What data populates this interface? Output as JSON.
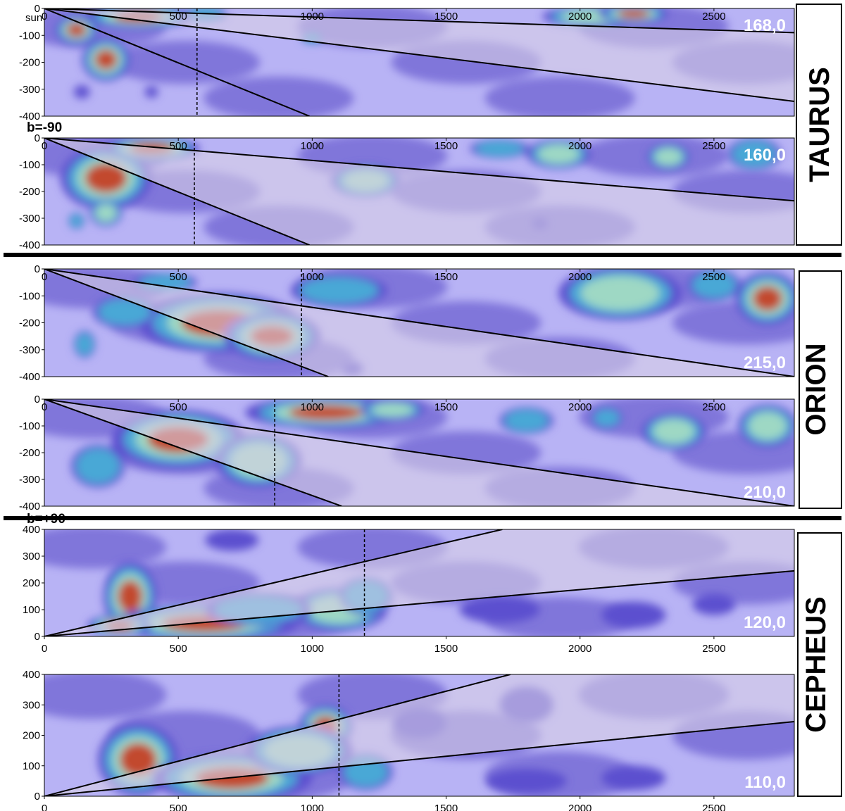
{
  "chart_data": {
    "type": "heatmap",
    "description_of_axes": "",
    "panels": [
      {
        "region": "TAURUS",
        "lb": "168,0",
        "xlim": [
          0,
          2800
        ],
        "ylim": [
          -400,
          0
        ],
        "ticks_x": [
          "0",
          "500",
          "1000",
          "1500",
          "2000",
          "2500"
        ],
        "ticks_y": [
          "0",
          "-100",
          "-200",
          "-300",
          "-400"
        ],
        "annotation": "sun",
        "cone_lines": [
          [
            [
              0,
              0
            ],
            [
              2800,
              -90
            ]
          ],
          [
            [
              0,
              0
            ],
            [
              2800,
              -345
            ]
          ],
          [
            [
              0,
              0
            ],
            [
              990,
              -400
            ]
          ]
        ],
        "dotted_x": 570,
        "blobs": [
          {
            "x": 120,
            "y": -80,
            "rx": 80,
            "ry": 55,
            "level": 5
          },
          {
            "x": 230,
            "y": -190,
            "rx": 90,
            "ry": 80,
            "level": 5
          },
          {
            "x": 350,
            "y": -30,
            "rx": 200,
            "ry": 45,
            "level": 5
          },
          {
            "x": 600,
            "y": -20,
            "rx": 80,
            "ry": 30,
            "level": 3
          },
          {
            "x": 1000,
            "y": -110,
            "rx": 40,
            "ry": 20,
            "level": 3
          },
          {
            "x": 2050,
            "y": -30,
            "rx": 190,
            "ry": 40,
            "level": 4
          },
          {
            "x": 2200,
            "y": -20,
            "rx": 130,
            "ry": 35,
            "level": 5
          },
          {
            "x": 140,
            "y": -310,
            "rx": 30,
            "ry": 25,
            "level": 2
          },
          {
            "x": 400,
            "y": -310,
            "rx": 25,
            "ry": 22,
            "level": 2
          }
        ]
      },
      {
        "region": "TAURUS",
        "lb": "160,0",
        "xlim": [
          0,
          2800
        ],
        "ylim": [
          -400,
          0
        ],
        "ticks_x": [
          "0",
          "500",
          "1000",
          "1500",
          "2000",
          "2500"
        ],
        "ticks_y": [
          "0",
          "-100",
          "-200",
          "-300",
          "-400"
        ],
        "annotation": "b=-90",
        "cone_lines": [
          [
            [
              0,
              0
            ],
            [
              2800,
              -235
            ]
          ],
          [
            [
              0,
              0
            ],
            [
              990,
              -400
            ]
          ]
        ],
        "dotted_x": 560,
        "blobs": [
          {
            "x": 230,
            "y": -150,
            "rx": 170,
            "ry": 120,
            "level": 5
          },
          {
            "x": 400,
            "y": -40,
            "rx": 180,
            "ry": 45,
            "level": 5
          },
          {
            "x": 230,
            "y": -280,
            "rx": 60,
            "ry": 50,
            "level": 4
          },
          {
            "x": 1200,
            "y": -160,
            "rx": 130,
            "ry": 60,
            "level": 4
          },
          {
            "x": 1700,
            "y": -40,
            "rx": 110,
            "ry": 35,
            "level": 3
          },
          {
            "x": 1920,
            "y": -60,
            "rx": 120,
            "ry": 55,
            "level": 4
          },
          {
            "x": 2330,
            "y": -70,
            "rx": 80,
            "ry": 50,
            "level": 4
          },
          {
            "x": 2650,
            "y": -60,
            "rx": 100,
            "ry": 60,
            "level": 3
          },
          {
            "x": 120,
            "y": -310,
            "rx": 30,
            "ry": 30,
            "level": 3
          },
          {
            "x": 1850,
            "y": -320,
            "rx": 30,
            "ry": 20,
            "level": 2
          }
        ]
      },
      {
        "region": "ORION",
        "lb": "215,0",
        "xlim": [
          0,
          2800
        ],
        "ylim": [
          -400,
          0
        ],
        "ticks_x": [
          "0",
          "500",
          "1000",
          "1500",
          "2000",
          "2500"
        ],
        "ticks_y": [
          "0",
          "-100",
          "-200",
          "-300",
          "-400"
        ],
        "annotation": "",
        "cone_lines": [
          [
            [
              0,
              0
            ],
            [
              2800,
              -400
            ]
          ],
          [
            [
              0,
              0
            ],
            [
              1060,
              -400
            ]
          ]
        ],
        "dotted_x": 960,
        "blobs": [
          {
            "x": 650,
            "y": -200,
            "rx": 300,
            "ry": 110,
            "level": 5
          },
          {
            "x": 850,
            "y": -250,
            "rx": 180,
            "ry": 90,
            "level": 5
          },
          {
            "x": 300,
            "y": -160,
            "rx": 120,
            "ry": 60,
            "level": 3
          },
          {
            "x": 450,
            "y": -50,
            "rx": 120,
            "ry": 35,
            "level": 3
          },
          {
            "x": 1100,
            "y": -80,
            "rx": 180,
            "ry": 60,
            "level": 3
          },
          {
            "x": 2150,
            "y": -90,
            "rx": 230,
            "ry": 100,
            "level": 4
          },
          {
            "x": 2700,
            "y": -110,
            "rx": 120,
            "ry": 100,
            "level": 5
          },
          {
            "x": 2500,
            "y": -60,
            "rx": 100,
            "ry": 60,
            "level": 3
          },
          {
            "x": 150,
            "y": -280,
            "rx": 40,
            "ry": 50,
            "level": 3
          },
          {
            "x": 1150,
            "y": -370,
            "rx": 40,
            "ry": 25,
            "level": 2
          }
        ]
      },
      {
        "region": "ORION",
        "lb": "210,0",
        "xlim": [
          0,
          2800
        ],
        "ylim": [
          -400,
          0
        ],
        "ticks_x": [
          "0",
          "500",
          "1000",
          "1500",
          "2000",
          "2500"
        ],
        "ticks_y": [
          "0",
          "-100",
          "-200",
          "-300",
          "-400"
        ],
        "annotation": "",
        "cone_lines": [
          [
            [
              0,
              0
            ],
            [
              2800,
              -400
            ]
          ],
          [
            [
              0,
              0
            ],
            [
              1110,
              -400
            ]
          ]
        ],
        "dotted_x": 860,
        "blobs": [
          {
            "x": 500,
            "y": -150,
            "rx": 250,
            "ry": 110,
            "level": 5
          },
          {
            "x": 800,
            "y": -230,
            "rx": 160,
            "ry": 100,
            "level": 4
          },
          {
            "x": 1050,
            "y": -50,
            "rx": 300,
            "ry": 60,
            "level": 5
          },
          {
            "x": 1300,
            "y": -40,
            "rx": 120,
            "ry": 40,
            "level": 4
          },
          {
            "x": 1800,
            "y": -80,
            "rx": 100,
            "ry": 50,
            "level": 3
          },
          {
            "x": 2350,
            "y": -120,
            "rx": 120,
            "ry": 70,
            "level": 4
          },
          {
            "x": 2700,
            "y": -100,
            "rx": 110,
            "ry": 80,
            "level": 4
          },
          {
            "x": 200,
            "y": -250,
            "rx": 100,
            "ry": 80,
            "level": 3
          },
          {
            "x": 2100,
            "y": -70,
            "rx": 60,
            "ry": 40,
            "level": 3
          }
        ]
      },
      {
        "region": "CEPHEUS",
        "lb": "120,0",
        "xlim": [
          0,
          2800
        ],
        "ylim": [
          0,
          400
        ],
        "ticks_x": [
          "0",
          "500",
          "1000",
          "1500",
          "2000",
          "2500"
        ],
        "ticks_y": [
          "400",
          "300",
          "200",
          "100",
          "0"
        ],
        "annotation": "b=+90",
        "cone_lines": [
          [
            [
              0,
              0
            ],
            [
              2800,
              245
            ]
          ],
          [
            [
              0,
              0
            ],
            [
              1710,
              400
            ]
          ]
        ],
        "dotted_x": 1195,
        "blobs": [
          {
            "x": 320,
            "y": 150,
            "rx": 100,
            "ry": 130,
            "level": 5
          },
          {
            "x": 600,
            "y": 50,
            "rx": 350,
            "ry": 70,
            "level": 5
          },
          {
            "x": 1100,
            "y": 100,
            "rx": 180,
            "ry": 80,
            "level": 4
          },
          {
            "x": 1200,
            "y": 150,
            "rx": 100,
            "ry": 70,
            "level": 3
          },
          {
            "x": 800,
            "y": 100,
            "rx": 200,
            "ry": 60,
            "level": 3
          },
          {
            "x": 280,
            "y": 40,
            "rx": 120,
            "ry": 40,
            "level": 5
          },
          {
            "x": 1700,
            "y": 100,
            "rx": 150,
            "ry": 50,
            "level": 2
          },
          {
            "x": 2200,
            "y": 80,
            "rx": 120,
            "ry": 50,
            "level": 2
          },
          {
            "x": 700,
            "y": 360,
            "rx": 100,
            "ry": 40,
            "level": 2
          },
          {
            "x": 2500,
            "y": 120,
            "rx": 80,
            "ry": 40,
            "level": 2
          }
        ]
      },
      {
        "region": "CEPHEUS",
        "lb": "110,0",
        "xlim": [
          0,
          2800
        ],
        "ylim": [
          0,
          400
        ],
        "ticks_x": [
          "0",
          "500",
          "1000",
          "1500",
          "2000",
          "2500"
        ],
        "ticks_y": [
          "400",
          "300",
          "200",
          "100",
          "0"
        ],
        "annotation": "",
        "cone_lines": [
          [
            [
              0,
              0
            ],
            [
              2800,
              245
            ]
          ],
          [
            [
              0,
              0
            ],
            [
              1740,
              400
            ]
          ]
        ],
        "dotted_x": 1100,
        "blobs": [
          {
            "x": 350,
            "y": 120,
            "rx": 150,
            "ry": 120,
            "level": 5
          },
          {
            "x": 700,
            "y": 60,
            "rx": 300,
            "ry": 80,
            "level": 5
          },
          {
            "x": 1050,
            "y": 230,
            "rx": 100,
            "ry": 70,
            "level": 5
          },
          {
            "x": 950,
            "y": 150,
            "rx": 200,
            "ry": 80,
            "level": 4
          },
          {
            "x": 1200,
            "y": 80,
            "rx": 100,
            "ry": 60,
            "level": 3
          },
          {
            "x": 1800,
            "y": 50,
            "rx": 150,
            "ry": 40,
            "level": 2
          },
          {
            "x": 2200,
            "y": 60,
            "rx": 120,
            "ry": 40,
            "level": 2
          },
          {
            "x": 1800,
            "y": 300,
            "rx": 100,
            "ry": 60,
            "level": 2
          },
          {
            "x": 1400,
            "y": 240,
            "rx": 100,
            "ry": 50,
            "level": 2
          }
        ]
      }
    ],
    "colormap": [
      "#b8b3f5",
      "#7a70d8",
      "#5b4fcf",
      "#4aa8d6",
      "#9ed8c4",
      "#c24a2e"
    ],
    "cone_fill": "#d8d0e6"
  }
}
